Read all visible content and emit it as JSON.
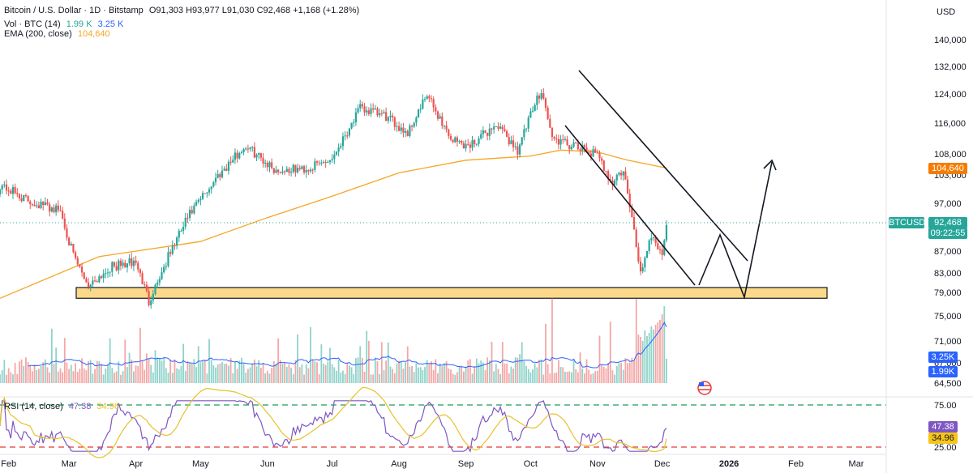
{
  "header": {
    "symbol": "Bitcoin / U.S. Dollar · 1D · Bitstamp",
    "ohlc": "O91,303  H93,977  L91,030  C92,468  +1,168 (+1.28%)",
    "vol_label": "Vol · BTC (14)",
    "vol_val1": "1.99 K",
    "vol_val2": "3.25 K",
    "ema_label": "EMA (200, close)",
    "ema_val": "104,640",
    "rsi_label": "RSI (14, close)",
    "rsi_val1": "47.38",
    "rsi_val2": "34.96"
  },
  "price_axis": {
    "currency": "USD",
    "ticks": [
      "140,000",
      "132,000",
      "124,000",
      "116,000",
      "108,000",
      "103,000",
      "97,000",
      "87,000",
      "83,000",
      "79,000",
      "75,000",
      "71,000",
      "67,000",
      "64,500"
    ]
  },
  "badges": {
    "ema": "104,640",
    "symbol": "BTCUSD",
    "price": "92,468",
    "countdown": "09:22:55",
    "vol_ma": "3.25K",
    "vol": "1.99K"
  },
  "rsi_axis": {
    "ticks": [
      "75.00",
      "25.00"
    ],
    "badge1": "47.38",
    "badge2": "34.96"
  },
  "time_axis": [
    "Feb",
    "Mar",
    "Apr",
    "May",
    "Jun",
    "Jul",
    "Aug",
    "Sep",
    "Oct",
    "Nov",
    "Dec",
    "2026",
    "Feb",
    "Mar"
  ],
  "colors": {
    "up": "#26a69a",
    "down": "#ef5350",
    "ema": "#f5a623",
    "vol_ma": "#2962ff",
    "rsi": "#7e57c2",
    "rsi_ma": "#e6c229",
    "zone_fill": "#fcd98a"
  },
  "chart_data": [
    {
      "type": "line",
      "title": "Bitcoin / U.S. Dollar · 1D · Bitstamp",
      "ylabel": "USD",
      "ylim": [
        73000,
        143000
      ],
      "x": [
        "2025-01-28",
        "2025-02-10",
        "2025-02-25",
        "2025-03-03",
        "2025-03-10",
        "2025-03-20",
        "2025-04-01",
        "2025-04-07",
        "2025-04-15",
        "2025-04-25",
        "2025-05-10",
        "2025-05-22",
        "2025-06-05",
        "2025-06-20",
        "2025-07-01",
        "2025-07-14",
        "2025-07-25",
        "2025-08-05",
        "2025-08-14",
        "2025-08-25",
        "2025-09-02",
        "2025-09-15",
        "2025-09-25",
        "2025-10-06",
        "2025-10-11",
        "2025-10-20",
        "2025-10-31",
        "2025-11-08",
        "2025-11-13",
        "2025-11-21",
        "2025-11-26",
        "2025-12-01",
        "2025-12-03"
      ],
      "series": [
        {
          "values": [
            101000,
            97500,
            95500,
            86000,
            80500,
            84000,
            85000,
            77500,
            85000,
            94000,
            103500,
            110000,
            104000,
            104500,
            107000,
            120000,
            118000,
            113500,
            123500,
            112000,
            110000,
            115500,
            109000,
            125500,
            112000,
            110000,
            108000,
            101500,
            104000,
            83000,
            90500,
            86500,
            92468
          ]
        }
      ],
      "ema": {
        "name": "EMA (200, close)",
        "x": [
          "2025-01-28",
          "2025-03-15",
          "2025-05-01",
          "2025-06-01",
          "2025-07-01",
          "2025-08-01",
          "2025-09-01",
          "2025-10-01",
          "2025-10-15",
          "2025-11-01",
          "2025-11-15",
          "2025-12-03"
        ],
        "values": [
          78000,
          86000,
          89000,
          94000,
          98500,
          103500,
          106500,
          107500,
          109000,
          108500,
          106500,
          104640
        ]
      },
      "support_zone": [
        78000,
        80000
      ]
    },
    {
      "type": "bar",
      "title": "Vol · BTC (14)",
      "last_values": [
        1.99,
        3.25
      ]
    },
    {
      "type": "line",
      "title": "RSI (14, close)",
      "ylim": [
        25,
        75
      ],
      "levels": [
        75,
        25
      ],
      "last_values": [
        47.38,
        34.96
      ]
    }
  ]
}
